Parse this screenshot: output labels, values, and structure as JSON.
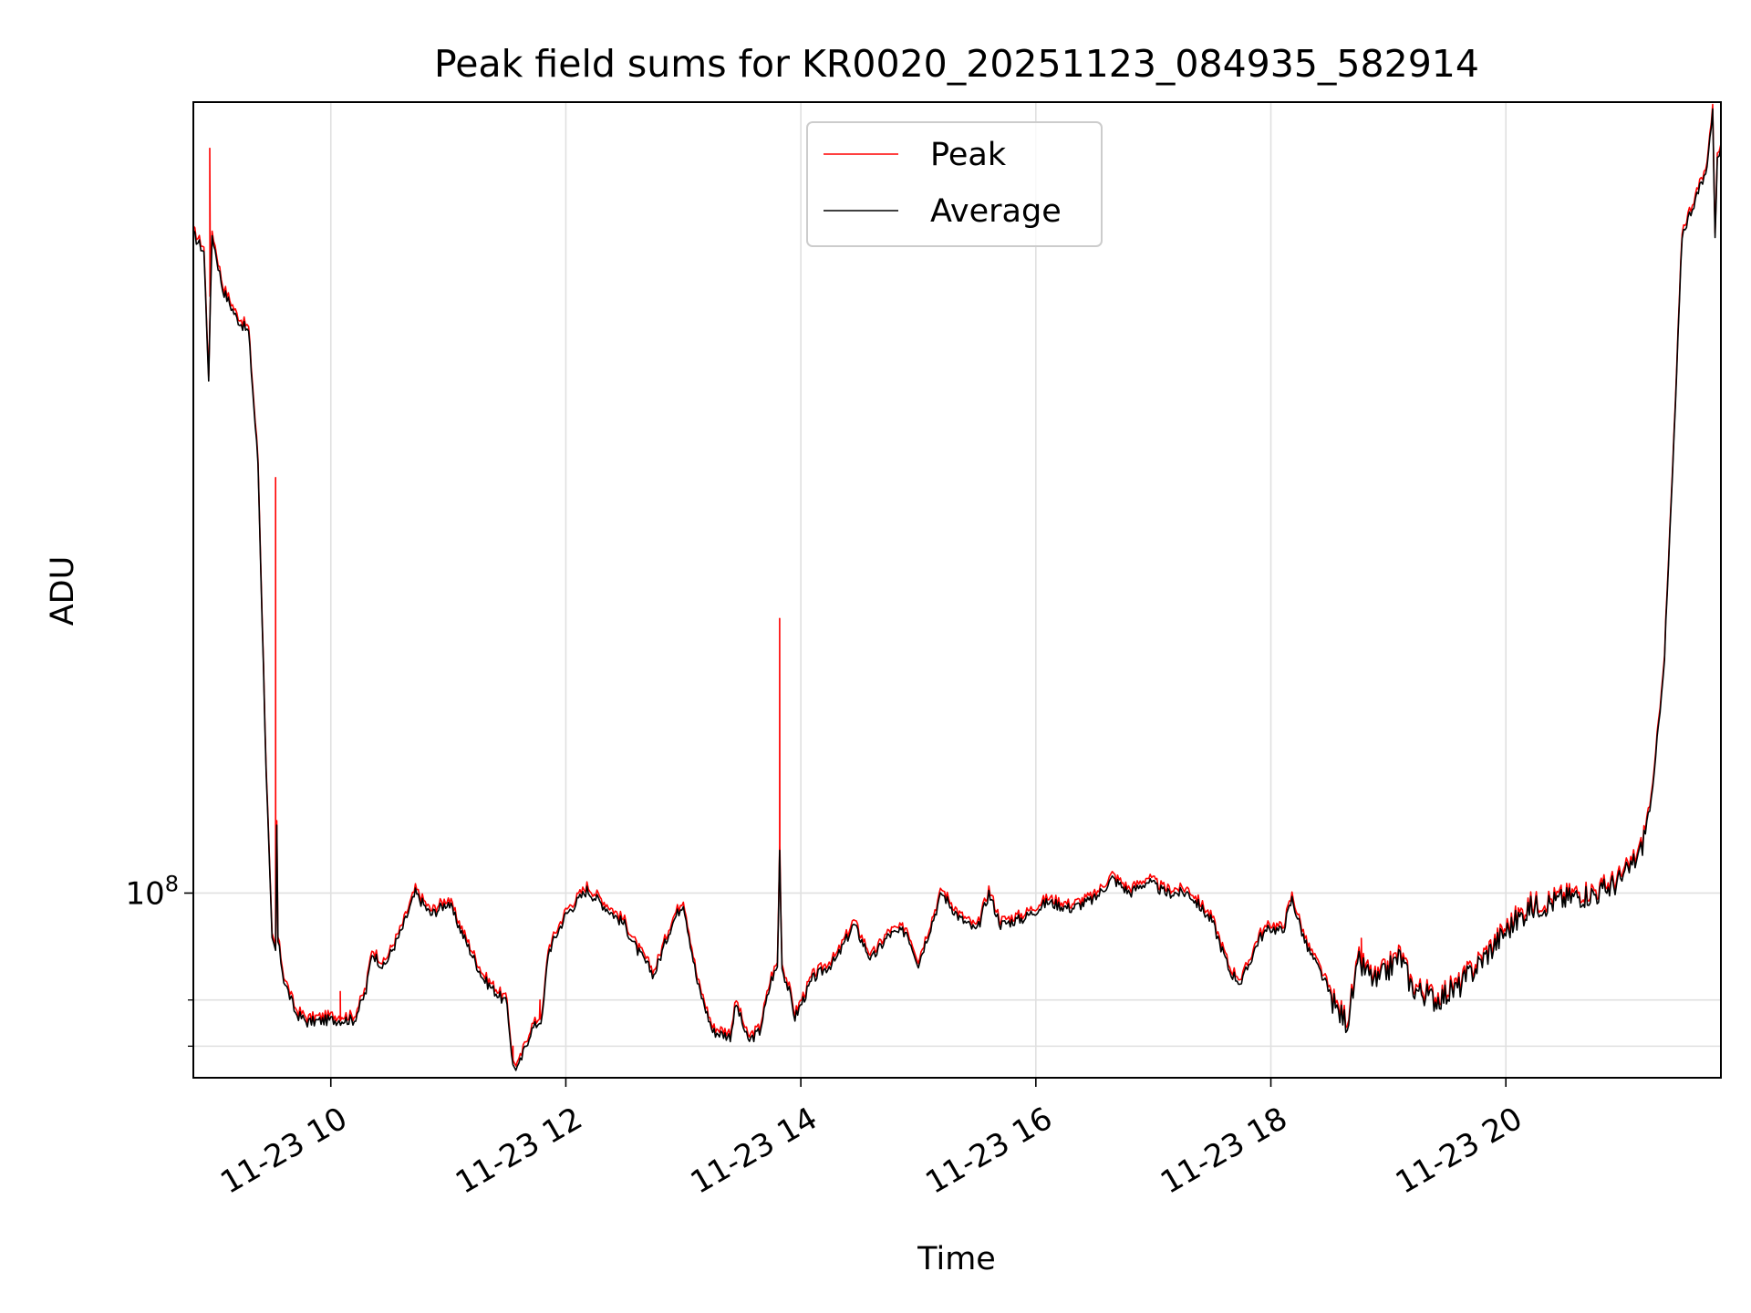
{
  "chart_data": {
    "type": "line",
    "title": "Peak field sums for KR0020_20251123_084935_582914",
    "xlabel": "Time",
    "ylabel": "ADU",
    "yscale": "log",
    "ylim": [
      54000000,
      1400000000
    ],
    "xlim_hours": [
      8.83,
      21.83
    ],
    "grid": true,
    "legend_position": "top-center",
    "x_ticks": [
      {
        "hour": 10,
        "label": "11-23 10"
      },
      {
        "hour": 12,
        "label": "11-23 12"
      },
      {
        "hour": 14,
        "label": "11-23 14"
      },
      {
        "hour": 16,
        "label": "11-23 16"
      },
      {
        "hour": 18,
        "label": "11-23 18"
      },
      {
        "hour": 20,
        "label": "11-23 20"
      }
    ],
    "y_major_ticks": [
      {
        "value": 100000000,
        "base": "10",
        "exp": "8"
      }
    ],
    "y_minor_ticks": [
      60000000,
      70000000
    ],
    "series": [
      {
        "name": "Peak",
        "color": "#ff0000",
        "spikes": [
          {
            "hour": 8.97,
            "value": 1200000000
          },
          {
            "hour": 9.53,
            "value": 400000000
          },
          {
            "hour": 10.08,
            "value": 72000000
          },
          {
            "hour": 11.55,
            "value": 60000000
          },
          {
            "hour": 11.78,
            "value": 70000000
          },
          {
            "hour": 13.82,
            "value": 250000000
          },
          {
            "hour": 18.77,
            "value": 86000000
          }
        ]
      },
      {
        "name": "Average",
        "color": "#000000",
        "points": [
          [
            8.83,
            900000000
          ],
          [
            8.92,
            850000000
          ],
          [
            8.96,
            560000000
          ],
          [
            8.99,
            900000000
          ],
          [
            9.08,
            750000000
          ],
          [
            9.2,
            680000000
          ],
          [
            9.3,
            650000000
          ],
          [
            9.38,
            420000000
          ],
          [
            9.45,
            150000000
          ],
          [
            9.5,
            85000000
          ],
          [
            9.53,
            82000000
          ],
          [
            9.54,
            125000000
          ],
          [
            9.55,
            85000000
          ],
          [
            9.6,
            75000000
          ],
          [
            9.7,
            67000000
          ],
          [
            9.8,
            65000000
          ],
          [
            10.0,
            65500000
          ],
          [
            10.2,
            65500000
          ],
          [
            10.3,
            72000000
          ],
          [
            10.35,
            82000000
          ],
          [
            10.45,
            78000000
          ],
          [
            10.6,
            88000000
          ],
          [
            10.72,
            100000000
          ],
          [
            10.85,
            93000000
          ],
          [
            11.0,
            97000000
          ],
          [
            11.15,
            85000000
          ],
          [
            11.3,
            75000000
          ],
          [
            11.5,
            69000000
          ],
          [
            11.55,
            56000000
          ],
          [
            11.6,
            56000000
          ],
          [
            11.7,
            63000000
          ],
          [
            11.8,
            66000000
          ],
          [
            11.85,
            82000000
          ],
          [
            12.0,
            93000000
          ],
          [
            12.18,
            101000000
          ],
          [
            12.35,
            95000000
          ],
          [
            12.5,
            90000000
          ],
          [
            12.6,
            83000000
          ],
          [
            12.75,
            76000000
          ],
          [
            12.9,
            90000000
          ],
          [
            13.0,
            97000000
          ],
          [
            13.12,
            74000000
          ],
          [
            13.25,
            63000000
          ],
          [
            13.4,
            62000000
          ],
          [
            13.45,
            69000000
          ],
          [
            13.55,
            61000000
          ],
          [
            13.65,
            63000000
          ],
          [
            13.75,
            75000000
          ],
          [
            13.8,
            78000000
          ],
          [
            13.82,
            115000000
          ],
          [
            13.84,
            78000000
          ],
          [
            13.9,
            72000000
          ],
          [
            13.95,
            66000000
          ],
          [
            14.1,
            75000000
          ],
          [
            14.3,
            80000000
          ],
          [
            14.45,
            90000000
          ],
          [
            14.6,
            80000000
          ],
          [
            14.75,
            87000000
          ],
          [
            14.9,
            88000000
          ],
          [
            15.0,
            79000000
          ],
          [
            15.2,
            100000000
          ],
          [
            15.35,
            92000000
          ],
          [
            15.5,
            88000000
          ],
          [
            15.6,
            100000000
          ],
          [
            15.7,
            90000000
          ],
          [
            15.9,
            92000000
          ],
          [
            16.1,
            97000000
          ],
          [
            16.3,
            95000000
          ],
          [
            16.5,
            98000000
          ],
          [
            16.65,
            105000000
          ],
          [
            16.8,
            100000000
          ],
          [
            16.95,
            104000000
          ],
          [
            17.1,
            100000000
          ],
          [
            17.3,
            100000000
          ],
          [
            17.5,
            91000000
          ],
          [
            17.65,
            77000000
          ],
          [
            17.75,
            74000000
          ],
          [
            17.9,
            86000000
          ],
          [
            18.0,
            89000000
          ],
          [
            18.1,
            88000000
          ],
          [
            18.18,
            98000000
          ],
          [
            18.3,
            84000000
          ],
          [
            18.45,
            75000000
          ],
          [
            18.55,
            68000000
          ],
          [
            18.65,
            65000000
          ],
          [
            18.75,
            79000000
          ],
          [
            18.9,
            74000000
          ],
          [
            19.1,
            81000000
          ],
          [
            19.2,
            73000000
          ],
          [
            19.4,
            70000000
          ],
          [
            19.6,
            73000000
          ],
          [
            19.8,
            80000000
          ],
          [
            20.0,
            88000000
          ],
          [
            20.2,
            95000000
          ],
          [
            20.4,
            97000000
          ],
          [
            20.6,
            99000000
          ],
          [
            20.8,
            100000000
          ],
          [
            21.0,
            105000000
          ],
          [
            21.15,
            115000000
          ],
          [
            21.25,
            140000000
          ],
          [
            21.35,
            220000000
          ],
          [
            21.43,
            450000000
          ],
          [
            21.5,
            900000000
          ],
          [
            21.6,
            1000000000
          ],
          [
            21.7,
            1100000000
          ],
          [
            21.76,
            1350000000
          ],
          [
            21.78,
            900000000
          ],
          [
            21.8,
            1150000000
          ],
          [
            21.83,
            1200000000
          ]
        ]
      }
    ]
  }
}
